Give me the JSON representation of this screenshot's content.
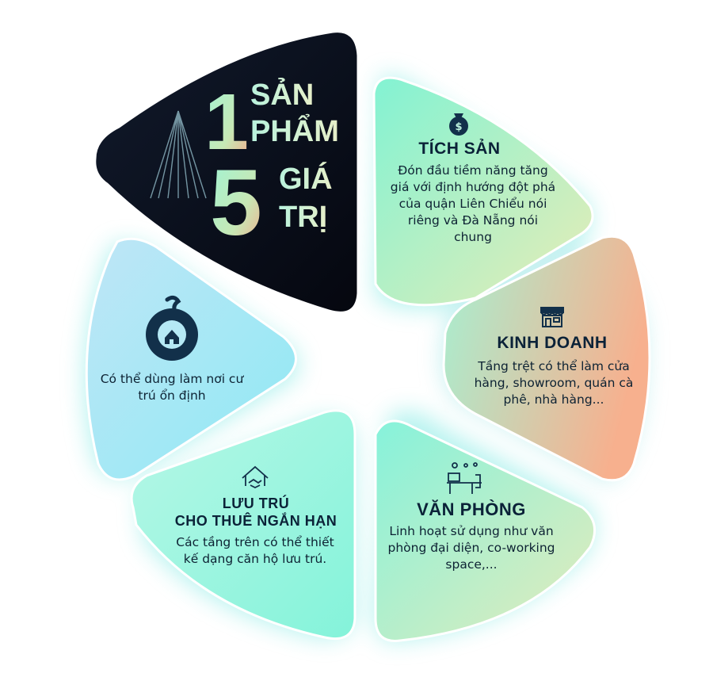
{
  "hero": {
    "num1": "1",
    "word1a": "SẢN",
    "word1b": "PHẨM",
    "num2": "5",
    "word2a": "GIÁ",
    "word2b": "TRỊ"
  },
  "segments": [
    {
      "id": "tich-san",
      "title": "TÍCH SẢN",
      "description": "Đón đầu tiềm năng tăng giá với định hướng đột phá của quận Liên Chiểu nói riêng và Đà Nẵng nói chung",
      "icon": "money-bag-icon"
    },
    {
      "id": "kinh-doanh",
      "title": "KINH DOANH",
      "description": "Tầng trệt có thể làm cửa hàng, showroom, quán cà phê, nhà hàng...",
      "icon": "storefront-icon"
    },
    {
      "id": "van-phong",
      "title": "VĂN PHÒNG",
      "description": "Linh hoạt sử dụng như văn phòng đại diện, co-working space,...",
      "icon": "office-desk-icon"
    },
    {
      "id": "luu-tru",
      "title_line1": "LƯU TRÚ",
      "title_line2": "CHO THUÊ NGẮN HẠN",
      "description": "Các tầng trên có thể thiết kế dạng căn hộ lưu trú.",
      "icon": "handshake-house-icon"
    },
    {
      "id": "o",
      "title": "",
      "description": "Có thể dùng làm nơi cư trú ổn định",
      "icon": "o-home-icon",
      "glyph": "Ở"
    }
  ],
  "colors": {
    "dark": "#0a0f1e",
    "navy": "#12304a",
    "mint": "#8ef0d0",
    "peach": "#f5b48f"
  }
}
